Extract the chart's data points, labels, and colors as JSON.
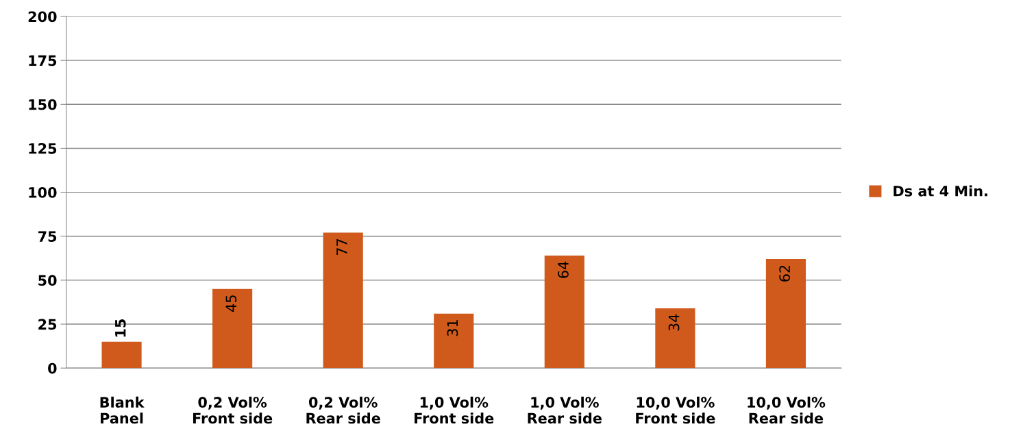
{
  "chart_data": {
    "type": "bar",
    "categories": [
      "Blank\nPanel",
      "0,2 Vol%\nFront side",
      "0,2 Vol%\nRear side",
      "1,0 Vol%\nFront side",
      "1,0 Vol%\nRear side",
      "10,0 Vol%\nFront side",
      "10,0 Vol%\nRear side"
    ],
    "series": [
      {
        "name": "Ds at 4 Min.",
        "color": "#d05a1c",
        "values": [
          15,
          45,
          77,
          31,
          64,
          34,
          62
        ]
      }
    ],
    "ylim": [
      0,
      200
    ],
    "yticks": [
      0,
      25,
      50,
      75,
      100,
      125,
      150,
      175,
      200
    ],
    "grid": "y",
    "legend": "right",
    "data_labels": true
  }
}
